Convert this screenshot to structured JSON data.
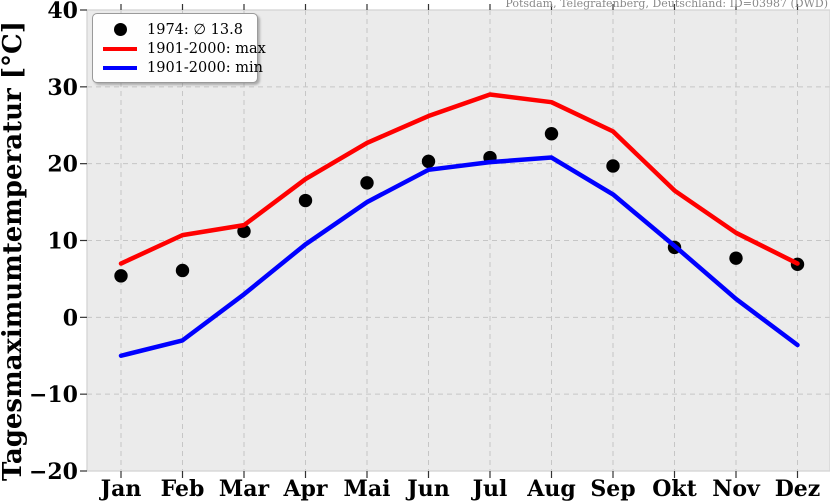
{
  "station_label": "Potsdam, Telegrafenberg, Deutschland: ID=03987 (DWD)",
  "chart_data": {
    "type": "line",
    "title": "Potsdam, Telegrafenberg, Deutschland: ID=03987 (DWD)",
    "ylabel": "Tagesmaximumtemperatur [°C]",
    "xlabel": "",
    "categories": [
      "Jan",
      "Feb",
      "Mar",
      "Apr",
      "Mai",
      "Jun",
      "Jul",
      "Aug",
      "Sep",
      "Okt",
      "Nov",
      "Dez"
    ],
    "ylim": [
      -20,
      40
    ],
    "yticks": [
      40,
      30,
      20,
      10,
      0,
      -10,
      -20
    ],
    "grid": "dashed-both-axes",
    "legend_position": "upper-left",
    "plot_bg_color": "#ebebeb",
    "grid_color": "#c6c6c6",
    "spine_color": "#d4d4d4",
    "series": [
      {
        "name": "1974: ∅ 13.8",
        "style": "scatter",
        "color": "#000000",
        "values": [
          5.4,
          6.1,
          11.2,
          15.2,
          17.5,
          20.3,
          20.8,
          23.9,
          19.7,
          9.1,
          7.7,
          6.9
        ]
      },
      {
        "name": "1901-2000: max",
        "style": "line",
        "color": "#ff0000",
        "values": [
          7.0,
          10.7,
          12.0,
          18.0,
          22.7,
          26.2,
          29.0,
          28.0,
          24.2,
          16.5,
          11.0,
          7.0
        ]
      },
      {
        "name": "1901-2000: min",
        "style": "line",
        "color": "#0000ff",
        "values": [
          -5.0,
          -3.0,
          3.0,
          9.5,
          15.0,
          19.2,
          20.2,
          20.8,
          16.0,
          9.3,
          2.4,
          -3.6
        ]
      }
    ]
  }
}
